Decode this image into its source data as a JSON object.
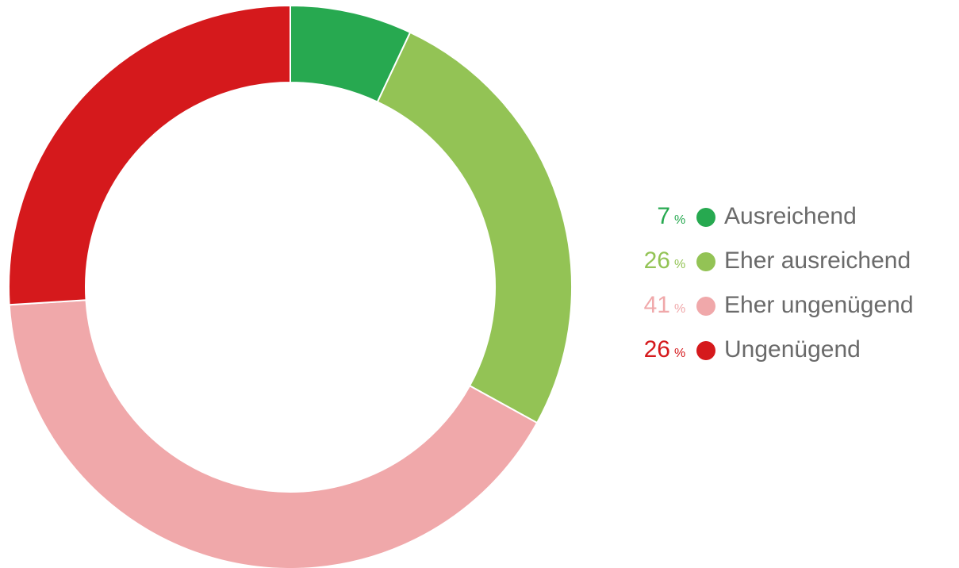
{
  "chart_data": {
    "type": "donut",
    "categories": [
      "Ausreichend",
      "Eher ausreichend",
      "Eher ungenügend",
      "Ungenügend"
    ],
    "values": [
      7,
      26,
      41,
      26
    ],
    "unit": "%",
    "colors": [
      "#27a950",
      "#93c355",
      "#f0a8aa",
      "#d5191c"
    ]
  }
}
